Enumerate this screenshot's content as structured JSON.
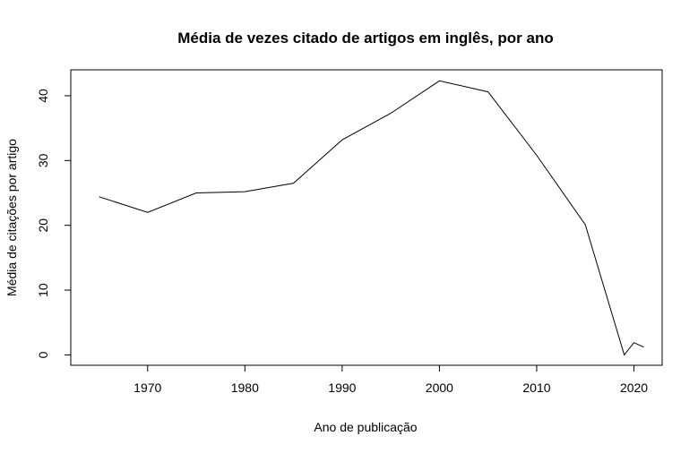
{
  "chart_data": {
    "type": "line",
    "title": "Média de vezes citado de artigos em inglês, por ano",
    "xlabel": "Ano de publicação",
    "ylabel": "Média de citações por artigo",
    "xlim": [
      1962.1,
      2022.9
    ],
    "ylim": [
      -1.6,
      44.0
    ],
    "x_ticks": [
      1970,
      1980,
      1990,
      2000,
      2010,
      2020
    ],
    "y_ticks": [
      0,
      10,
      20,
      30,
      40
    ],
    "grid": false,
    "legend": "none",
    "series": [
      {
        "x": [
          1965,
          1970,
          1975,
          1980,
          1985,
          1990,
          1995,
          2000,
          2005,
          2010,
          2015,
          2019,
          2020,
          2021
        ],
        "y": [
          24.4,
          22.0,
          25.0,
          25.2,
          26.5,
          33.2,
          37.3,
          42.3,
          40.6,
          30.8,
          20.1,
          0.0,
          1.9,
          1.2
        ]
      }
    ],
    "colors": {
      "line": "#000000",
      "axis": "#000000",
      "background": "#ffffff"
    }
  }
}
